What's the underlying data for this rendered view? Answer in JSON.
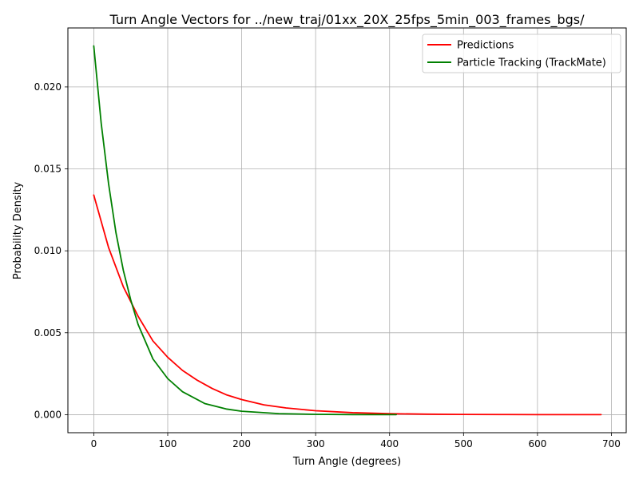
{
  "chart_data": {
    "type": "line",
    "title": "Turn Angle Vectors for ../new_traj/01xx_20X_25fps_5min_003_frames_bgs/",
    "xlabel": "Turn Angle (degrees)",
    "ylabel": "Probability Density",
    "xlim": [
      -35,
      720
    ],
    "ylim": [
      -0.0011,
      0.0236
    ],
    "xticks": [
      0,
      100,
      200,
      300,
      400,
      500,
      600,
      700
    ],
    "xtick_labels": [
      "0",
      "100",
      "200",
      "300",
      "400",
      "500",
      "600",
      "700"
    ],
    "yticks": [
      0,
      0.005,
      0.01,
      0.015,
      0.02
    ],
    "ytick_labels": [
      "0.000",
      "0.005",
      "0.010",
      "0.015",
      "0.020"
    ],
    "grid": true,
    "legend_position": "top-right",
    "series": [
      {
        "name": "Predictions",
        "color": "#ff0000",
        "x": [
          0,
          20,
          40,
          60,
          80,
          100,
          120,
          140,
          160,
          180,
          200,
          230,
          260,
          300,
          350,
          400,
          450,
          500,
          550,
          600,
          650,
          686
        ],
        "y": [
          0.0134,
          0.0102,
          0.0078,
          0.006,
          0.0045,
          0.0035,
          0.0027,
          0.0021,
          0.0016,
          0.0012,
          0.00092,
          0.0006,
          0.00041,
          0.00024,
          0.00012,
          6e-05,
          3e-05,
          1.5e-05,
          8e-06,
          4e-06,
          2e-06,
          1e-06
        ]
      },
      {
        "name": "Particle Tracking (TrackMate)",
        "color": "#008000",
        "x": [
          0,
          10,
          20,
          30,
          40,
          50,
          60,
          80,
          100,
          120,
          150,
          180,
          200,
          250,
          300,
          350,
          409
        ],
        "y": [
          0.0225,
          0.0178,
          0.0141,
          0.0111,
          0.0088,
          0.007,
          0.0055,
          0.0034,
          0.0022,
          0.0014,
          0.00068,
          0.00034,
          0.00021,
          6.5e-05,
          2e-05,
          6e-06,
          2e-06
        ]
      }
    ]
  }
}
